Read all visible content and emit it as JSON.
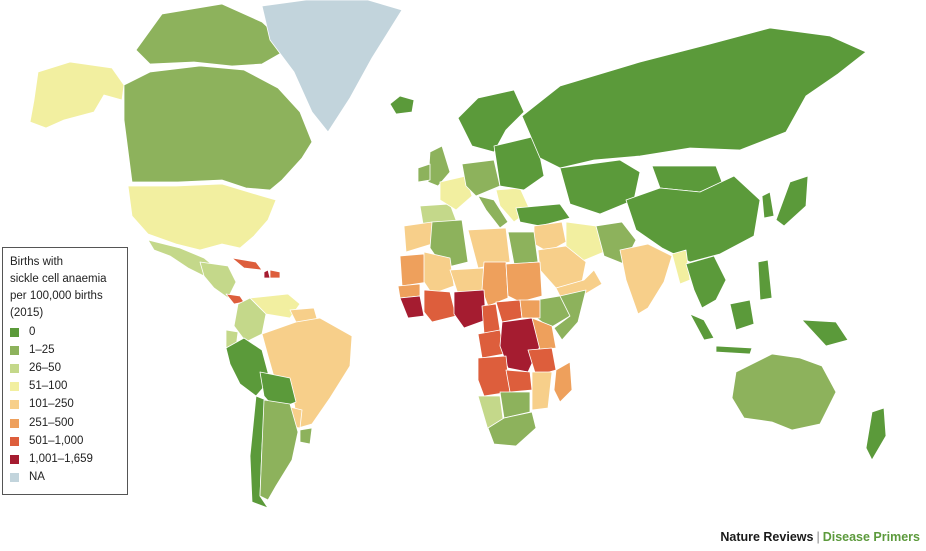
{
  "legend": {
    "title_lines": [
      "Births with",
      "sickle cell anaemia",
      "per 100,000 births",
      "(2015)"
    ],
    "items": [
      {
        "label": "0",
        "color": "#5b9a3a"
      },
      {
        "label": "1–25",
        "color": "#8db25c"
      },
      {
        "label": "26–50",
        "color": "#c4d88a"
      },
      {
        "label": "51–100",
        "color": "#f2efa0"
      },
      {
        "label": "101–250",
        "color": "#f7cf8a"
      },
      {
        "label": "251–500",
        "color": "#eea05c"
      },
      {
        "label": "501–1,000",
        "color": "#dd5e3c"
      },
      {
        "label": "1,001–1,659",
        "color": "#a51c30"
      },
      {
        "label": "NA",
        "color": "#c2d4dc"
      }
    ]
  },
  "credit": {
    "journal": "Nature Reviews",
    "separator": "|",
    "series": "Disease Primers",
    "series_color": "#5c9a3c"
  },
  "map": {
    "regions": [
      {
        "name": "Alaska",
        "cat": 3
      },
      {
        "name": "Canada",
        "cat": 1
      },
      {
        "name": "Canadian Arctic Islands",
        "cat": 1
      },
      {
        "name": "Greenland",
        "cat": 8
      },
      {
        "name": "Iceland",
        "cat": 0
      },
      {
        "name": "United States",
        "cat": 3
      },
      {
        "name": "Mexico",
        "cat": 2
      },
      {
        "name": "Central America",
        "cat": 2
      },
      {
        "name": "Panama",
        "cat": 6
      },
      {
        "name": "Cuba",
        "cat": 6
      },
      {
        "name": "Haiti",
        "cat": 7
      },
      {
        "name": "Dominican Republic",
        "cat": 6
      },
      {
        "name": "Venezuela",
        "cat": 3
      },
      {
        "name": "Colombia",
        "cat": 2
      },
      {
        "name": "Ecuador",
        "cat": 2
      },
      {
        "name": "Peru",
        "cat": 0
      },
      {
        "name": "Guianas",
        "cat": 4
      },
      {
        "name": "Brazil",
        "cat": 4
      },
      {
        "name": "Bolivia",
        "cat": 0
      },
      {
        "name": "Paraguay",
        "cat": 4
      },
      {
        "name": "Chile",
        "cat": 0
      },
      {
        "name": "Argentina",
        "cat": 1
      },
      {
        "name": "Uruguay",
        "cat": 1
      },
      {
        "name": "United Kingdom",
        "cat": 1
      },
      {
        "name": "Ireland",
        "cat": 1
      },
      {
        "name": "Iberia",
        "cat": 2
      },
      {
        "name": "France",
        "cat": 3
      },
      {
        "name": "Central Europe",
        "cat": 1
      },
      {
        "name": "Scandinavia",
        "cat": 0
      },
      {
        "name": "Italy",
        "cat": 1
      },
      {
        "name": "Balkans",
        "cat": 3
      },
      {
        "name": "Eastern Europe",
        "cat": 0
      },
      {
        "name": "Turkey",
        "cat": 0
      },
      {
        "name": "Russia",
        "cat": 0
      },
      {
        "name": "Kazakhstan and Central Asia",
        "cat": 0
      },
      {
        "name": "Mongolia",
        "cat": 0
      },
      {
        "name": "China",
        "cat": 0
      },
      {
        "name": "Korea",
        "cat": 0
      },
      {
        "name": "Japan",
        "cat": 0
      },
      {
        "name": "Middle East",
        "cat": 4
      },
      {
        "name": "Iran",
        "cat": 3
      },
      {
        "name": "Saudi Arabia",
        "cat": 4
      },
      {
        "name": "Yemen and Oman",
        "cat": 4
      },
      {
        "name": "Afghanistan and Pakistan",
        "cat": 1
      },
      {
        "name": "India",
        "cat": 4
      },
      {
        "name": "Myanmar",
        "cat": 3
      },
      {
        "name": "Southeast Asia",
        "cat": 0
      },
      {
        "name": "Sumatra",
        "cat": 0
      },
      {
        "name": "Borneo",
        "cat": 0
      },
      {
        "name": "Philippines",
        "cat": 0
      },
      {
        "name": "New Guinea",
        "cat": 0
      },
      {
        "name": "Java",
        "cat": 0
      },
      {
        "name": "Australia",
        "cat": 1
      },
      {
        "name": "New Zealand",
        "cat": 0
      },
      {
        "name": "Morocco",
        "cat": 4
      },
      {
        "name": "Algeria",
        "cat": 1
      },
      {
        "name": "Libya",
        "cat": 4
      },
      {
        "name": "Egypt",
        "cat": 1
      },
      {
        "name": "Mauritania",
        "cat": 5
      },
      {
        "name": "Mali",
        "cat": 4
      },
      {
        "name": "Niger",
        "cat": 4
      },
      {
        "name": "Chad",
        "cat": 5
      },
      {
        "name": "Sudan",
        "cat": 5
      },
      {
        "name": "Ethiopia",
        "cat": 1
      },
      {
        "name": "Horn of Africa",
        "cat": 1
      },
      {
        "name": "Senegal",
        "cat": 5
      },
      {
        "name": "Sierra Leone and Liberia",
        "cat": 7
      },
      {
        "name": "Coast of Guinea",
        "cat": 6
      },
      {
        "name": "Nigeria",
        "cat": 7
      },
      {
        "name": "Cameroon",
        "cat": 6
      },
      {
        "name": "Central African Republic",
        "cat": 6
      },
      {
        "name": "South Sudan",
        "cat": 5
      },
      {
        "name": "Gabon and Congo",
        "cat": 6
      },
      {
        "name": "DR Congo",
        "cat": 7
      },
      {
        "name": "Uganda and Kenya",
        "cat": 5
      },
      {
        "name": "Tanzania",
        "cat": 6
      },
      {
        "name": "Angola",
        "cat": 6
      },
      {
        "name": "Zambia",
        "cat": 6
      },
      {
        "name": "Mozambique",
        "cat": 4
      },
      {
        "name": "Namibia",
        "cat": 2
      },
      {
        "name": "Botswana and Zimbabwe",
        "cat": 1
      },
      {
        "name": "South Africa",
        "cat": 1
      },
      {
        "name": "Madagascar",
        "cat": 5
      }
    ]
  }
}
